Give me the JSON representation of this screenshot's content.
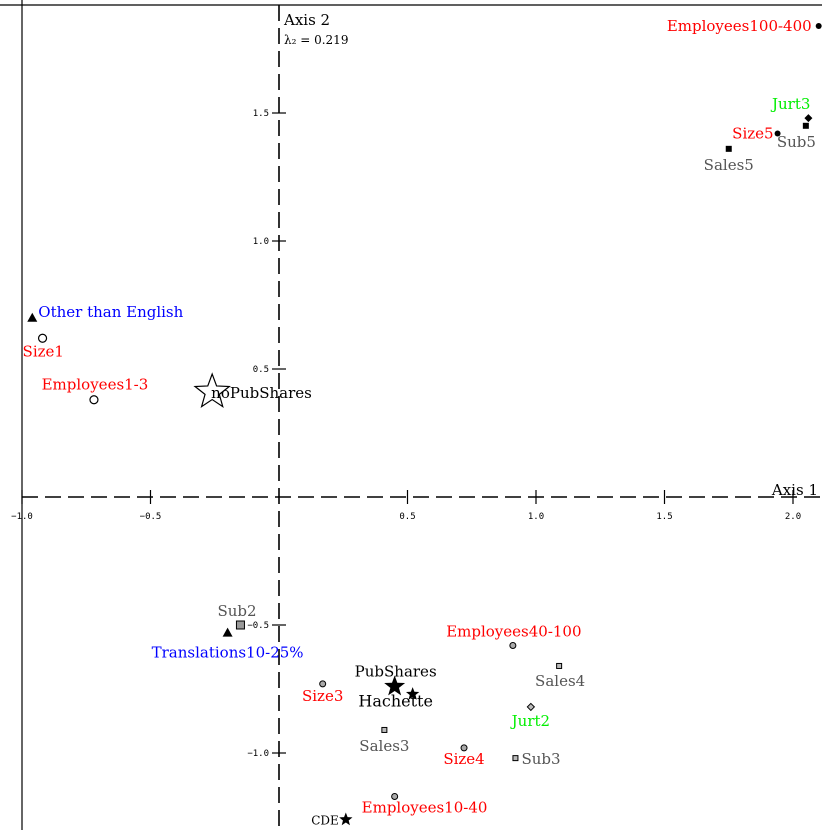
{
  "chart_data": {
    "type": "scatter",
    "title": "",
    "x_axis_label": "Axis 1",
    "y_axis_label": "Axis 2",
    "y_eigen_label": "λ₂ = 0.219",
    "xlim": [
      -1.0,
      2.1
    ],
    "ylim": [
      -1.28,
      1.88
    ],
    "x_ticks": [
      -1.0,
      -0.5,
      0.5,
      1.0,
      1.5,
      2.0
    ],
    "x_tick_labels": [
      "−1.0",
      "−0.5",
      "0.5",
      "1.0",
      "1.5",
      "2.0"
    ],
    "y_ticks": [
      -1.0,
      -0.5,
      0.5,
      1.0,
      1.5
    ],
    "y_tick_labels": [
      "−1.0",
      "−0.5",
      "0.5",
      "1.0",
      "1.5"
    ],
    "grid": false,
    "colors": {
      "red": "#ff0000",
      "blue": "#0000ff",
      "green": "#00ee00",
      "gray": "#555555",
      "black": "#000000"
    },
    "points": [
      {
        "label": "Employees100-400",
        "x": 2.1,
        "y": 1.84,
        "marker": "circle-filled",
        "color": "red",
        "label_pos": "left"
      },
      {
        "label": "Jurt3",
        "x": 2.06,
        "y": 1.48,
        "marker": "diamond-filled",
        "color": "green",
        "label_pos": "above-left"
      },
      {
        "label": "Size5",
        "x": 1.94,
        "y": 1.42,
        "marker": "circle-filled",
        "color": "red",
        "label_pos": "left"
      },
      {
        "label": "Sub5",
        "x": 2.05,
        "y": 1.45,
        "marker": "square-filled",
        "color": "gray",
        "label_pos": "below"
      },
      {
        "label": "Sales5",
        "x": 1.75,
        "y": 1.36,
        "marker": "square-filled",
        "color": "gray",
        "label_pos": "below"
      },
      {
        "label": "Other than English",
        "x": -0.96,
        "y": 0.7,
        "marker": "triangle-filled",
        "color": "blue",
        "label_pos": "right"
      },
      {
        "label": "Size1",
        "x": -0.92,
        "y": 0.62,
        "marker": "circle-open",
        "color": "red",
        "label_pos": "below-left"
      },
      {
        "label": "Employees1-3",
        "x": -0.72,
        "y": 0.38,
        "marker": "circle-open",
        "color": "red",
        "label_pos": "above"
      },
      {
        "label": "noPubShares",
        "x": -0.26,
        "y": 0.41,
        "marker": "star-open",
        "color": "black",
        "label_pos": "right"
      },
      {
        "label": "Sub2",
        "x": -0.15,
        "y": -0.5,
        "marker": "square-gray",
        "color": "gray",
        "label_pos": "left-above"
      },
      {
        "label": "Translations10-25%",
        "x": -0.2,
        "y": -0.53,
        "marker": "triangle-filled",
        "color": "blue",
        "label_pos": "below"
      },
      {
        "label": "Employees40-100",
        "x": 0.91,
        "y": -0.58,
        "marker": "circle-gray",
        "color": "red",
        "label_pos": "above"
      },
      {
        "label": "Sales4",
        "x": 1.09,
        "y": -0.66,
        "marker": "square-small",
        "color": "gray",
        "label_pos": "below"
      },
      {
        "label": "Size3",
        "x": 0.17,
        "y": -0.73,
        "marker": "circle-gray",
        "color": "red",
        "label_pos": "below-left"
      },
      {
        "label": "PubShares",
        "x": 0.45,
        "y": -0.74,
        "marker": "star-filled-large",
        "color": "black",
        "label_pos": "above"
      },
      {
        "label": "Hachette",
        "x": 0.52,
        "y": -0.77,
        "marker": "star-filled",
        "color": "black",
        "label_pos": "below"
      },
      {
        "label": "Jurt2",
        "x": 0.98,
        "y": -0.82,
        "marker": "diamond-small",
        "color": "green",
        "label_pos": "below"
      },
      {
        "label": "Sales3",
        "x": 0.41,
        "y": -0.91,
        "marker": "square-small",
        "color": "gray",
        "label_pos": "below"
      },
      {
        "label": "Size4",
        "x": 0.72,
        "y": -0.98,
        "marker": "circle-gray",
        "color": "red",
        "label_pos": "below-left"
      },
      {
        "label": "Sub3",
        "x": 0.92,
        "y": -1.02,
        "marker": "square-small",
        "color": "gray",
        "label_pos": "right"
      },
      {
        "label": "Employees10-40",
        "x": 0.45,
        "y": -1.17,
        "marker": "circle-gray",
        "color": "red",
        "label_pos": "below-right"
      },
      {
        "label": "CDE",
        "x": 0.26,
        "y": -1.26,
        "marker": "star-filled",
        "color": "black",
        "label_pos": "left"
      }
    ]
  }
}
